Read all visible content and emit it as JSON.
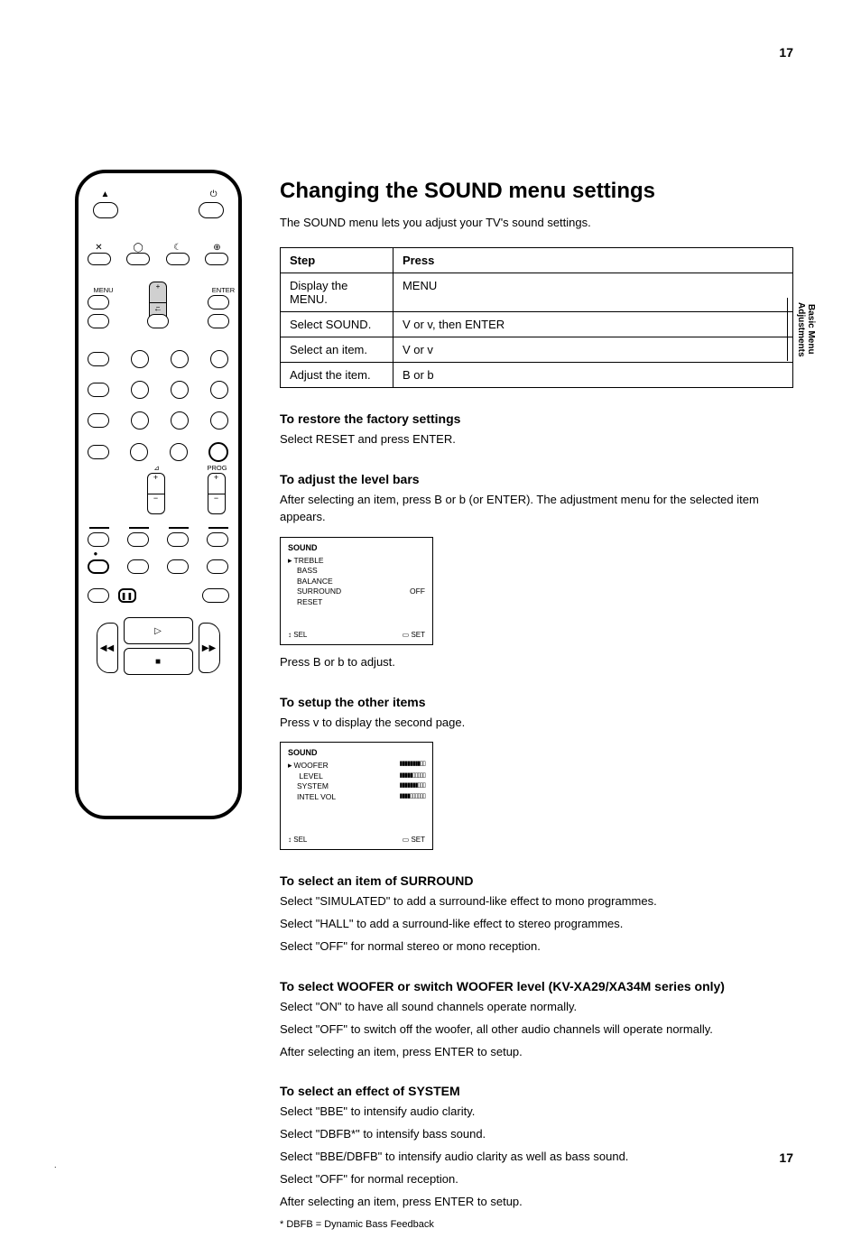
{
  "page": {
    "number_top": "17",
    "number_bottom": "17",
    "title": "Changing the SOUND menu settings",
    "lead": "The SOUND menu lets you adjust your TV's sound settings.",
    "side_tab": "Basic Menu Adjustments",
    "smallprint": "."
  },
  "step_table": {
    "head": [
      "Step",
      "Press"
    ],
    "rows": [
      [
        "Display the MENU.",
        "MENU"
      ],
      [
        "Select SOUND.",
        "V or v, then ENTER"
      ],
      [
        "Select an item.",
        "V or v"
      ],
      [
        "Adjust the item.",
        "B or b"
      ]
    ]
  },
  "instructions": {
    "h1": "To restore the factory settings",
    "p1": "Select RESET and press ENTER.",
    "h2": "To adjust the level bars",
    "p2a": "After selecting an item, press B or b (or ENTER). The adjustment menu for the selected item appears.",
    "p2b": "Press B or b to adjust.",
    "h3": "To setup the other items",
    "p3": "Press v to display the second page.",
    "h4": "To select an item of SURROUND",
    "p4a": "Select \"SIMULATED\" to add a surround-like effect to mono programmes.",
    "p4b": "Select \"HALL\" to add a surround-like effect to stereo programmes.",
    "p4c": "Select \"OFF\" for normal stereo or mono reception.",
    "h5": "To select WOOFER or switch WOOFER level (KV-XA29/XA34M series only)",
    "p5a": "Select \"ON\" to have all sound channels operate normally.",
    "p5b": "Select \"OFF\" to switch off the woofer, all other audio channels will operate normally.",
    "p5c": "After selecting an item, press ENTER to setup.",
    "h6": "To select an effect of SYSTEM",
    "p6a": "Select \"BBE\" to intensify audio clarity.",
    "p6b": "Select \"DBFB*\" to intensify bass sound.",
    "p6c": "Select \"BBE/DBFB\" to intensify audio clarity as well as bass sound.",
    "p6d": "Select \"OFF\" for normal reception.",
    "p6e": "After selecting an item, press ENTER to setup.",
    "footnote": "* DBFB = Dynamic Bass Feedback"
  },
  "osd1": {
    "title": "SOUND",
    "items": [
      {
        "label": "TREBLE"
      },
      {
        "label": "BASS"
      },
      {
        "label": "BALANCE"
      },
      {
        "label": "SURROUND",
        "value": "OFF"
      },
      {
        "label": "RESET"
      }
    ],
    "foot_l": "SEL",
    "foot_r": "SET"
  },
  "osd2": {
    "title": "SOUND",
    "items": [
      {
        "label": "WOOFER",
        "bars": 8
      },
      {
        "label": "   LEVEL",
        "bars": 5
      },
      {
        "label": "SYSTEM",
        "bars": 7
      },
      {
        "label": "INTEL VOL",
        "bars": 4
      }
    ],
    "foot_l": "SEL",
    "foot_r": "SET"
  },
  "remote": {
    "icons": {
      "eject": "▲",
      "power": "⏻",
      "mute": "✕",
      "display": "◯",
      "sleep": "☾",
      "input": "⊕",
      "arrow_left": "←",
      "arrow_up": "▲",
      "arrow_down": "▼",
      "vol_up": "+",
      "vol_dn": "−",
      "ch_up": "+",
      "ch_dn": "−",
      "rec": "●",
      "play": "▷",
      "stop": "■",
      "pause": "❚❚",
      "rew": "◀◀",
      "ff": "▶▶"
    },
    "labels": {
      "menu": "MENU",
      "enter": "ENTER",
      "vol": "⊿",
      "prog": "PROG"
    }
  },
  "colors": {
    "fg": "#000000",
    "bg": "#ffffff",
    "hi": "#d0d0d0"
  }
}
